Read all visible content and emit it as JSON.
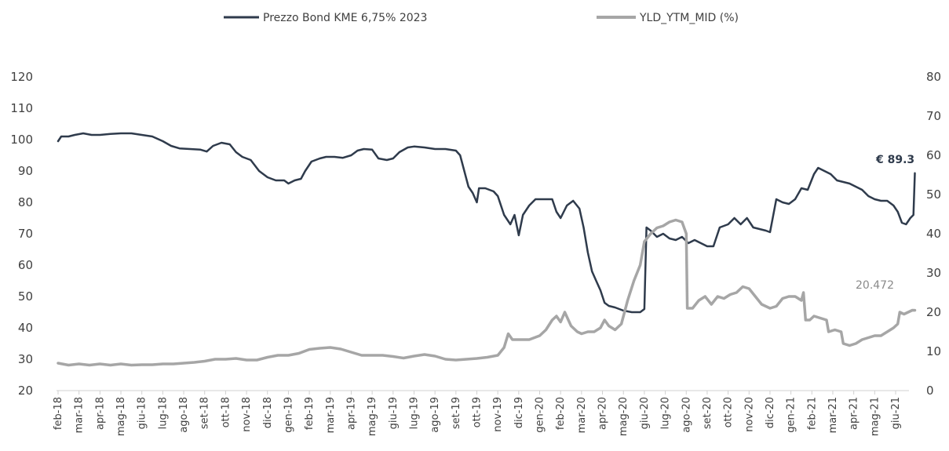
{
  "chart_data": {
    "type": "line",
    "title": "",
    "xlabel": "",
    "ylabel": "",
    "y2label": "",
    "ylim": [
      20,
      120
    ],
    "y2lim": [
      0,
      80
    ],
    "yticks": [
      20,
      30,
      40,
      50,
      60,
      70,
      80,
      90,
      100,
      110,
      120
    ],
    "y2ticks": [
      0,
      10,
      20,
      30,
      40,
      50,
      60,
      70,
      80
    ],
    "grid": false,
    "legend_position": "top",
    "categories": [
      "feb-18",
      "mar-18",
      "apr-18",
      "mag-18",
      "giu-18",
      "lug-18",
      "ago-18",
      "set-18",
      "ott-18",
      "nov-18",
      "dic-18",
      "gen-19",
      "feb-19",
      "mar-19",
      "apr-19",
      "mag-19",
      "giu-19",
      "lug-19",
      "ago-19",
      "set-19",
      "ott-19",
      "nov-19",
      "dic-19",
      "gen-20",
      "feb-20",
      "mar-20",
      "apr-20",
      "mag-20",
      "giu-20",
      "lug-20",
      "ago-20",
      "set-20",
      "ott-20",
      "nov-20",
      "dic-20",
      "gen-21",
      "feb-21",
      "mar-21",
      "apr-21",
      "mag-21",
      "giu-21"
    ],
    "series": [
      {
        "name": "Prezzo Bond KME 6,75% 2023",
        "axis": "left",
        "color": "#2f3b4c",
        "points": [
          [
            0,
            99.5
          ],
          [
            0.15,
            101
          ],
          [
            0.5,
            101
          ],
          [
            0.8,
            101.5
          ],
          [
            1.2,
            102
          ],
          [
            1.6,
            101.5
          ],
          [
            2,
            101.5
          ],
          [
            2.5,
            101.8
          ],
          [
            3,
            102
          ],
          [
            3.5,
            102
          ],
          [
            4,
            101.5
          ],
          [
            4.5,
            101
          ],
          [
            5,
            99.5
          ],
          [
            5.4,
            98
          ],
          [
            5.8,
            97.2
          ],
          [
            6.3,
            97
          ],
          [
            6.8,
            96.8
          ],
          [
            7.1,
            96.2
          ],
          [
            7.4,
            98
          ],
          [
            7.8,
            99
          ],
          [
            8.2,
            98.5
          ],
          [
            8.5,
            96
          ],
          [
            8.8,
            94.5
          ],
          [
            9.2,
            93.5
          ],
          [
            9.6,
            90
          ],
          [
            10,
            88
          ],
          [
            10.4,
            87
          ],
          [
            10.8,
            87
          ],
          [
            11.0,
            86
          ],
          [
            11.3,
            87
          ],
          [
            11.6,
            87.5
          ],
          [
            11.8,
            90
          ],
          [
            12.1,
            93
          ],
          [
            12.5,
            94
          ],
          [
            12.8,
            94.5
          ],
          [
            13.2,
            94.5
          ],
          [
            13.6,
            94.2
          ],
          [
            14,
            95
          ],
          [
            14.3,
            96.5
          ],
          [
            14.6,
            97
          ],
          [
            15,
            96.8
          ],
          [
            15.3,
            94
          ],
          [
            15.7,
            93.5
          ],
          [
            16,
            94
          ],
          [
            16.3,
            96
          ],
          [
            16.7,
            97.5
          ],
          [
            17,
            97.8
          ],
          [
            17.5,
            97.5
          ],
          [
            18,
            97
          ],
          [
            18.5,
            97
          ],
          [
            19,
            96.5
          ],
          [
            19.2,
            95
          ],
          [
            19.4,
            90
          ],
          [
            19.6,
            85
          ],
          [
            19.8,
            83
          ],
          [
            20.0,
            80
          ],
          [
            20.1,
            84.5
          ],
          [
            20.4,
            84.5
          ],
          [
            20.8,
            83.5
          ],
          [
            21.0,
            82
          ],
          [
            21.3,
            76
          ],
          [
            21.6,
            73
          ],
          [
            21.8,
            76
          ],
          [
            22.0,
            69.5
          ],
          [
            22.2,
            76
          ],
          [
            22.5,
            79
          ],
          [
            22.8,
            81
          ],
          [
            23.2,
            81
          ],
          [
            23.6,
            81
          ],
          [
            23.8,
            77
          ],
          [
            24.0,
            75
          ],
          [
            24.3,
            79
          ],
          [
            24.6,
            80.5
          ],
          [
            24.9,
            78
          ],
          [
            25.1,
            72
          ],
          [
            25.3,
            64
          ],
          [
            25.5,
            58
          ],
          [
            25.7,
            55
          ],
          [
            25.9,
            52
          ],
          [
            26.1,
            48
          ],
          [
            26.3,
            47
          ],
          [
            26.6,
            46.5
          ],
          [
            27.0,
            45.5
          ],
          [
            27.4,
            45
          ],
          [
            27.8,
            45
          ],
          [
            28.0,
            46
          ],
          [
            28.1,
            72
          ],
          [
            28.3,
            71
          ],
          [
            28.6,
            69
          ],
          [
            28.9,
            70
          ],
          [
            29.2,
            68.5
          ],
          [
            29.5,
            68
          ],
          [
            29.8,
            69
          ],
          [
            30.1,
            67
          ],
          [
            30.4,
            68
          ],
          [
            30.7,
            67
          ],
          [
            31.0,
            66
          ],
          [
            31.3,
            66
          ],
          [
            31.6,
            72
          ],
          [
            32.0,
            73
          ],
          [
            32.3,
            75
          ],
          [
            32.6,
            73
          ],
          [
            32.9,
            75
          ],
          [
            33.2,
            72
          ],
          [
            33.5,
            71.5
          ],
          [
            33.8,
            71
          ],
          [
            34.0,
            70.5
          ],
          [
            34.3,
            81
          ],
          [
            34.6,
            80
          ],
          [
            34.9,
            79.5
          ],
          [
            35.2,
            81
          ],
          [
            35.5,
            84.5
          ],
          [
            35.8,
            84
          ],
          [
            36.1,
            89
          ],
          [
            36.3,
            91
          ],
          [
            36.6,
            90
          ],
          [
            36.9,
            89
          ],
          [
            37.2,
            87
          ],
          [
            37.5,
            86.5
          ],
          [
            37.8,
            86
          ],
          [
            38.1,
            85
          ],
          [
            38.4,
            84
          ],
          [
            38.7,
            82
          ],
          [
            39.0,
            81
          ],
          [
            39.3,
            80.5
          ],
          [
            39.6,
            80.5
          ],
          [
            39.9,
            79
          ],
          [
            40.1,
            77
          ],
          [
            40.3,
            73.5
          ],
          [
            40.5,
            73
          ],
          [
            40.7,
            75
          ],
          [
            40.85,
            76
          ],
          [
            40.92,
            89.3
          ]
        ]
      },
      {
        "name": "YLD_YTM_MID (%)",
        "axis": "right",
        "color": "#a6a6a6",
        "points": [
          [
            0,
            7
          ],
          [
            0.5,
            6.5
          ],
          [
            1,
            6.8
          ],
          [
            1.5,
            6.5
          ],
          [
            2,
            6.8
          ],
          [
            2.5,
            6.5
          ],
          [
            3,
            6.8
          ],
          [
            3.5,
            6.5
          ],
          [
            4,
            6.6
          ],
          [
            4.5,
            6.6
          ],
          [
            5,
            6.8
          ],
          [
            5.5,
            6.8
          ],
          [
            6,
            7
          ],
          [
            6.5,
            7.2
          ],
          [
            7,
            7.5
          ],
          [
            7.5,
            8
          ],
          [
            8,
            8
          ],
          [
            8.5,
            8.2
          ],
          [
            9,
            7.8
          ],
          [
            9.5,
            7.8
          ],
          [
            10,
            8.5
          ],
          [
            10.5,
            9
          ],
          [
            11,
            9
          ],
          [
            11.5,
            9.5
          ],
          [
            12,
            10.5
          ],
          [
            12.5,
            10.8
          ],
          [
            13,
            11
          ],
          [
            13.5,
            10.6
          ],
          [
            14,
            9.8
          ],
          [
            14.5,
            9
          ],
          [
            15,
            9
          ],
          [
            15.5,
            9
          ],
          [
            16,
            8.7
          ],
          [
            16.5,
            8.3
          ],
          [
            17,
            8.8
          ],
          [
            17.5,
            9.2
          ],
          [
            18,
            8.8
          ],
          [
            18.5,
            8
          ],
          [
            19,
            7.8
          ],
          [
            19.5,
            8
          ],
          [
            20,
            8.2
          ],
          [
            20.5,
            8.5
          ],
          [
            21,
            9
          ],
          [
            21.3,
            11
          ],
          [
            21.5,
            14.5
          ],
          [
            21.7,
            13
          ],
          [
            22,
            13
          ],
          [
            22.5,
            13
          ],
          [
            23,
            14
          ],
          [
            23.3,
            15.5
          ],
          [
            23.6,
            18
          ],
          [
            23.8,
            19
          ],
          [
            24,
            17.5
          ],
          [
            24.2,
            20
          ],
          [
            24.5,
            16.5
          ],
          [
            24.8,
            15
          ],
          [
            25.0,
            14.5
          ],
          [
            25.3,
            15
          ],
          [
            25.6,
            15
          ],
          [
            25.9,
            16
          ],
          [
            26.1,
            18
          ],
          [
            26.3,
            16.5
          ],
          [
            26.6,
            15.5
          ],
          [
            26.9,
            17
          ],
          [
            27.2,
            23
          ],
          [
            27.5,
            28
          ],
          [
            27.8,
            32
          ],
          [
            28.0,
            38
          ],
          [
            28.3,
            40
          ],
          [
            28.6,
            41.5
          ],
          [
            28.9,
            42
          ],
          [
            29.2,
            43
          ],
          [
            29.5,
            43.5
          ],
          [
            29.8,
            43
          ],
          [
            30.0,
            40
          ],
          [
            30.05,
            21
          ],
          [
            30.3,
            21
          ],
          [
            30.6,
            23
          ],
          [
            30.9,
            24
          ],
          [
            31.2,
            22
          ],
          [
            31.5,
            24
          ],
          [
            31.8,
            23.5
          ],
          [
            32.1,
            24.5
          ],
          [
            32.4,
            25
          ],
          [
            32.7,
            26.5
          ],
          [
            33.0,
            26
          ],
          [
            33.3,
            24
          ],
          [
            33.6,
            22
          ],
          [
            34.0,
            21
          ],
          [
            34.3,
            21.5
          ],
          [
            34.6,
            23.5
          ],
          [
            34.9,
            24
          ],
          [
            35.2,
            24
          ],
          [
            35.5,
            23
          ],
          [
            35.6,
            25
          ],
          [
            35.7,
            18
          ],
          [
            35.9,
            18
          ],
          [
            36.1,
            19
          ],
          [
            36.4,
            18.5
          ],
          [
            36.7,
            18
          ],
          [
            36.8,
            15
          ],
          [
            37.1,
            15.5
          ],
          [
            37.4,
            15
          ],
          [
            37.5,
            12
          ],
          [
            37.8,
            11.5
          ],
          [
            38.1,
            12
          ],
          [
            38.4,
            13
          ],
          [
            38.7,
            13.5
          ],
          [
            39.0,
            14
          ],
          [
            39.3,
            14
          ],
          [
            39.6,
            15
          ],
          [
            39.9,
            16
          ],
          [
            40.1,
            17
          ],
          [
            40.2,
            20
          ],
          [
            40.4,
            19.5
          ],
          [
            40.6,
            20
          ],
          [
            40.8,
            20.5
          ],
          [
            40.92,
            20.472
          ]
        ]
      }
    ],
    "annotations": [
      {
        "series": "Prezzo Bond KME 6,75% 2023",
        "text": "€ 89.3"
      },
      {
        "series": "YLD_YTM_MID (%)",
        "text": "20.472"
      }
    ]
  }
}
